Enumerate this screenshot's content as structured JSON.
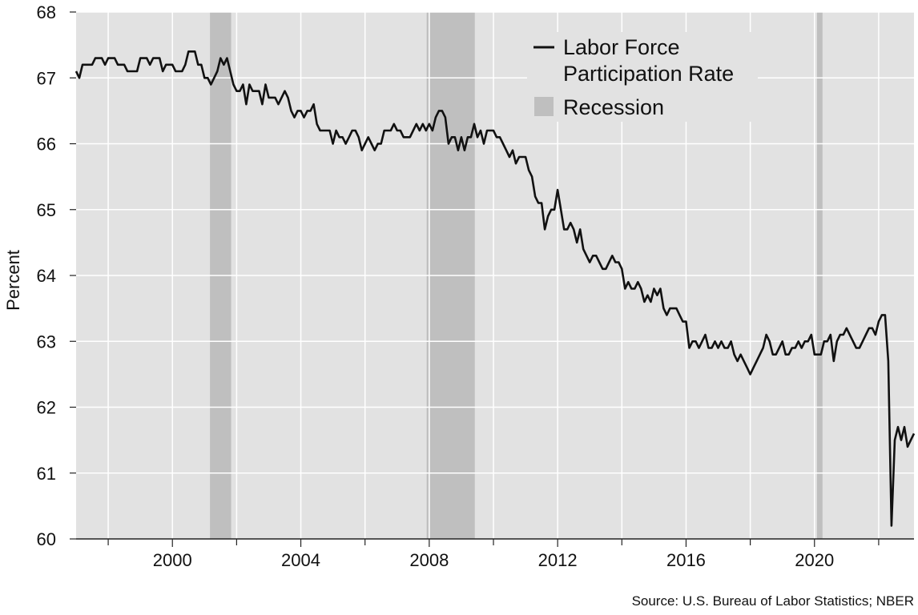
{
  "chart_data": {
    "type": "line",
    "title": "",
    "xlabel": "",
    "ylabel": "Percent",
    "source": "Source: U.S. Bureau of Labor Statistics; NBER",
    "xlim": [
      1997.0,
      2023.1
    ],
    "ylim": [
      60,
      68
    ],
    "x_ticks": [
      2000,
      2004,
      2008,
      2012,
      2016,
      2020
    ],
    "x_minor_ticks": [
      1998,
      2002,
      2006,
      2010,
      2014,
      2018,
      2022
    ],
    "y_ticks": [
      60,
      61,
      62,
      63,
      64,
      65,
      66,
      67,
      68
    ],
    "grid": true,
    "legend_position": "top-right",
    "legend": [
      {
        "label_lines": [
          "Labor Force",
          "Participation Rate"
        ],
        "kind": "line"
      },
      {
        "label_lines": [
          "Recession"
        ],
        "kind": "patch"
      }
    ],
    "colors": {
      "plot_background": "#e2e2e2",
      "recession": "#bfbfbf",
      "line": "#111111",
      "grid": "#ffffff"
    },
    "recessions": [
      {
        "start": 2001.17,
        "end": 2001.83
      },
      {
        "start": 2007.92,
        "end": 2009.42
      },
      {
        "start": 2020.08,
        "end": 2020.25
      }
    ],
    "series": [
      {
        "name": "Labor Force Participation Rate",
        "points": [
          [
            1997.0,
            67.1
          ],
          [
            1997.1,
            67.0
          ],
          [
            1997.2,
            67.2
          ],
          [
            1997.5,
            67.2
          ],
          [
            1997.6,
            67.3
          ],
          [
            1997.8,
            67.3
          ],
          [
            1997.9,
            67.2
          ],
          [
            1998.0,
            67.3
          ],
          [
            1998.2,
            67.3
          ],
          [
            1998.3,
            67.2
          ],
          [
            1998.5,
            67.2
          ],
          [
            1998.6,
            67.1
          ],
          [
            1998.9,
            67.1
          ],
          [
            1999.0,
            67.3
          ],
          [
            1999.2,
            67.3
          ],
          [
            1999.3,
            67.2
          ],
          [
            1999.4,
            67.3
          ],
          [
            1999.6,
            67.3
          ],
          [
            1999.7,
            67.1
          ],
          [
            1999.8,
            67.2
          ],
          [
            2000.0,
            67.2
          ],
          [
            2000.1,
            67.1
          ],
          [
            2000.3,
            67.1
          ],
          [
            2000.4,
            67.2
          ],
          [
            2000.5,
            67.4
          ],
          [
            2000.7,
            67.4
          ],
          [
            2000.8,
            67.2
          ],
          [
            2000.9,
            67.2
          ],
          [
            2001.0,
            67.0
          ],
          [
            2001.1,
            67.0
          ],
          [
            2001.2,
            66.9
          ],
          [
            2001.3,
            67.0
          ],
          [
            2001.4,
            67.1
          ],
          [
            2001.5,
            67.3
          ],
          [
            2001.6,
            67.2
          ],
          [
            2001.7,
            67.3
          ],
          [
            2001.8,
            67.1
          ],
          [
            2001.9,
            66.9
          ],
          [
            2002.0,
            66.8
          ],
          [
            2002.1,
            66.8
          ],
          [
            2002.2,
            66.9
          ],
          [
            2002.3,
            66.6
          ],
          [
            2002.4,
            66.9
          ],
          [
            2002.5,
            66.8
          ],
          [
            2002.7,
            66.8
          ],
          [
            2002.8,
            66.6
          ],
          [
            2002.9,
            66.9
          ],
          [
            2003.0,
            66.7
          ],
          [
            2003.2,
            66.7
          ],
          [
            2003.3,
            66.6
          ],
          [
            2003.5,
            66.8
          ],
          [
            2003.6,
            66.7
          ],
          [
            2003.7,
            66.5
          ],
          [
            2003.8,
            66.4
          ],
          [
            2003.9,
            66.5
          ],
          [
            2004.0,
            66.5
          ],
          [
            2004.1,
            66.4
          ],
          [
            2004.2,
            66.5
          ],
          [
            2004.3,
            66.5
          ],
          [
            2004.4,
            66.6
          ],
          [
            2004.5,
            66.3
          ],
          [
            2004.6,
            66.2
          ],
          [
            2004.9,
            66.2
          ],
          [
            2005.0,
            66.0
          ],
          [
            2005.1,
            66.2
          ],
          [
            2005.2,
            66.1
          ],
          [
            2005.3,
            66.1
          ],
          [
            2005.4,
            66.0
          ],
          [
            2005.5,
            66.1
          ],
          [
            2005.6,
            66.2
          ],
          [
            2005.7,
            66.2
          ],
          [
            2005.8,
            66.1
          ],
          [
            2005.9,
            65.9
          ],
          [
            2006.0,
            66.0
          ],
          [
            2006.1,
            66.1
          ],
          [
            2006.2,
            66.0
          ],
          [
            2006.3,
            65.9
          ],
          [
            2006.4,
            66.0
          ],
          [
            2006.5,
            66.0
          ],
          [
            2006.6,
            66.2
          ],
          [
            2006.8,
            66.2
          ],
          [
            2006.9,
            66.3
          ],
          [
            2007.0,
            66.2
          ],
          [
            2007.1,
            66.2
          ],
          [
            2007.2,
            66.1
          ],
          [
            2007.4,
            66.1
          ],
          [
            2007.5,
            66.2
          ],
          [
            2007.6,
            66.3
          ],
          [
            2007.7,
            66.2
          ],
          [
            2007.8,
            66.3
          ],
          [
            2007.9,
            66.2
          ],
          [
            2008.0,
            66.3
          ],
          [
            2008.1,
            66.2
          ],
          [
            2008.2,
            66.4
          ],
          [
            2008.3,
            66.5
          ],
          [
            2008.4,
            66.5
          ],
          [
            2008.5,
            66.4
          ],
          [
            2008.6,
            66.0
          ],
          [
            2008.7,
            66.1
          ],
          [
            2008.8,
            66.1
          ],
          [
            2008.9,
            65.9
          ],
          [
            2009.0,
            66.1
          ],
          [
            2009.1,
            65.9
          ],
          [
            2009.2,
            66.1
          ],
          [
            2009.3,
            66.1
          ],
          [
            2009.4,
            66.3
          ],
          [
            2009.5,
            66.1
          ],
          [
            2009.6,
            66.2
          ],
          [
            2009.7,
            66.0
          ],
          [
            2009.8,
            66.2
          ],
          [
            2010.0,
            66.2
          ],
          [
            2010.1,
            66.1
          ],
          [
            2010.2,
            66.1
          ],
          [
            2010.3,
            66.0
          ],
          [
            2010.4,
            65.9
          ],
          [
            2010.5,
            65.8
          ],
          [
            2010.6,
            65.9
          ],
          [
            2010.7,
            65.7
          ],
          [
            2010.8,
            65.8
          ],
          [
            2011.0,
            65.8
          ],
          [
            2011.1,
            65.6
          ],
          [
            2011.2,
            65.5
          ],
          [
            2011.3,
            65.2
          ],
          [
            2011.4,
            65.1
          ],
          [
            2011.5,
            65.1
          ],
          [
            2011.6,
            64.7
          ],
          [
            2011.7,
            64.9
          ],
          [
            2011.8,
            65.0
          ],
          [
            2011.9,
            65.0
          ],
          [
            2012.0,
            65.3
          ],
          [
            2012.1,
            65.0
          ],
          [
            2012.2,
            64.7
          ],
          [
            2012.3,
            64.7
          ],
          [
            2012.4,
            64.8
          ],
          [
            2012.5,
            64.7
          ],
          [
            2012.6,
            64.5
          ],
          [
            2012.7,
            64.7
          ],
          [
            2012.8,
            64.4
          ],
          [
            2012.9,
            64.3
          ],
          [
            2013.0,
            64.2
          ],
          [
            2013.1,
            64.3
          ],
          [
            2013.2,
            64.3
          ],
          [
            2013.3,
            64.2
          ],
          [
            2013.4,
            64.1
          ],
          [
            2013.5,
            64.1
          ],
          [
            2013.6,
            64.2
          ],
          [
            2013.7,
            64.3
          ],
          [
            2013.8,
            64.2
          ],
          [
            2013.9,
            64.2
          ],
          [
            2014.0,
            64.1
          ],
          [
            2014.1,
            63.8
          ],
          [
            2014.2,
            63.9
          ],
          [
            2014.3,
            63.8
          ],
          [
            2014.4,
            63.8
          ],
          [
            2014.5,
            63.9
          ],
          [
            2014.6,
            63.8
          ],
          [
            2014.7,
            63.6
          ],
          [
            2014.8,
            63.7
          ],
          [
            2014.9,
            63.6
          ],
          [
            2015.0,
            63.8
          ],
          [
            2015.1,
            63.7
          ],
          [
            2015.2,
            63.8
          ],
          [
            2015.3,
            63.5
          ],
          [
            2015.4,
            63.4
          ],
          [
            2015.5,
            63.5
          ],
          [
            2015.7,
            63.5
          ],
          [
            2015.8,
            63.4
          ],
          [
            2015.9,
            63.3
          ],
          [
            2016.0,
            63.3
          ],
          [
            2016.1,
            62.9
          ],
          [
            2016.2,
            63.0
          ],
          [
            2016.3,
            63.0
          ],
          [
            2016.4,
            62.9
          ],
          [
            2016.5,
            63.0
          ],
          [
            2016.6,
            63.1
          ],
          [
            2016.7,
            62.9
          ],
          [
            2016.8,
            62.9
          ],
          [
            2016.9,
            63.0
          ],
          [
            2017.0,
            62.9
          ],
          [
            2017.1,
            63.0
          ],
          [
            2017.2,
            62.9
          ],
          [
            2017.3,
            62.9
          ],
          [
            2017.4,
            63.0
          ],
          [
            2017.5,
            62.8
          ],
          [
            2017.6,
            62.7
          ],
          [
            2017.7,
            62.8
          ],
          [
            2017.8,
            62.7
          ],
          [
            2017.9,
            62.6
          ],
          [
            2018.0,
            62.5
          ],
          [
            2018.1,
            62.6
          ],
          [
            2018.2,
            62.7
          ],
          [
            2018.3,
            62.8
          ],
          [
            2018.4,
            62.9
          ],
          [
            2018.5,
            63.1
          ],
          [
            2018.6,
            63.0
          ],
          [
            2018.7,
            62.8
          ],
          [
            2018.8,
            62.8
          ],
          [
            2018.9,
            62.9
          ],
          [
            2019.0,
            63.0
          ],
          [
            2019.1,
            62.8
          ],
          [
            2019.2,
            62.8
          ],
          [
            2019.3,
            62.9
          ],
          [
            2019.4,
            62.9
          ],
          [
            2019.5,
            63.0
          ],
          [
            2019.6,
            62.9
          ],
          [
            2019.7,
            63.0
          ],
          [
            2019.8,
            63.0
          ],
          [
            2019.9,
            63.1
          ],
          [
            2020.0,
            62.8
          ],
          [
            2020.1,
            62.8
          ],
          [
            2020.2,
            62.8
          ],
          [
            2020.3,
            63.0
          ],
          [
            2020.4,
            63.0
          ],
          [
            2020.5,
            63.1
          ],
          [
            2020.6,
            62.7
          ],
          [
            2020.7,
            63.0
          ],
          [
            2020.8,
            63.1
          ],
          [
            2020.9,
            63.1
          ],
          [
            2021.0,
            63.2
          ],
          [
            2021.1,
            63.1
          ],
          [
            2021.2,
            63.0
          ],
          [
            2021.3,
            62.9
          ],
          [
            2021.4,
            62.9
          ],
          [
            2021.5,
            63.0
          ],
          [
            2021.6,
            63.1
          ],
          [
            2021.7,
            63.2
          ],
          [
            2021.8,
            63.2
          ],
          [
            2021.9,
            63.1
          ],
          [
            2022.0,
            63.3
          ],
          [
            2022.1,
            63.4
          ],
          [
            2022.2,
            63.4
          ],
          [
            2022.3,
            62.7
          ],
          [
            2022.4,
            60.2
          ],
          [
            2022.5,
            61.5
          ],
          [
            2022.6,
            61.7
          ],
          [
            2022.7,
            61.5
          ],
          [
            2022.8,
            61.7
          ],
          [
            2022.9,
            61.4
          ],
          [
            2023.0,
            61.5
          ],
          [
            2023.1,
            61.6
          ]
        ]
      }
    ]
  }
}
